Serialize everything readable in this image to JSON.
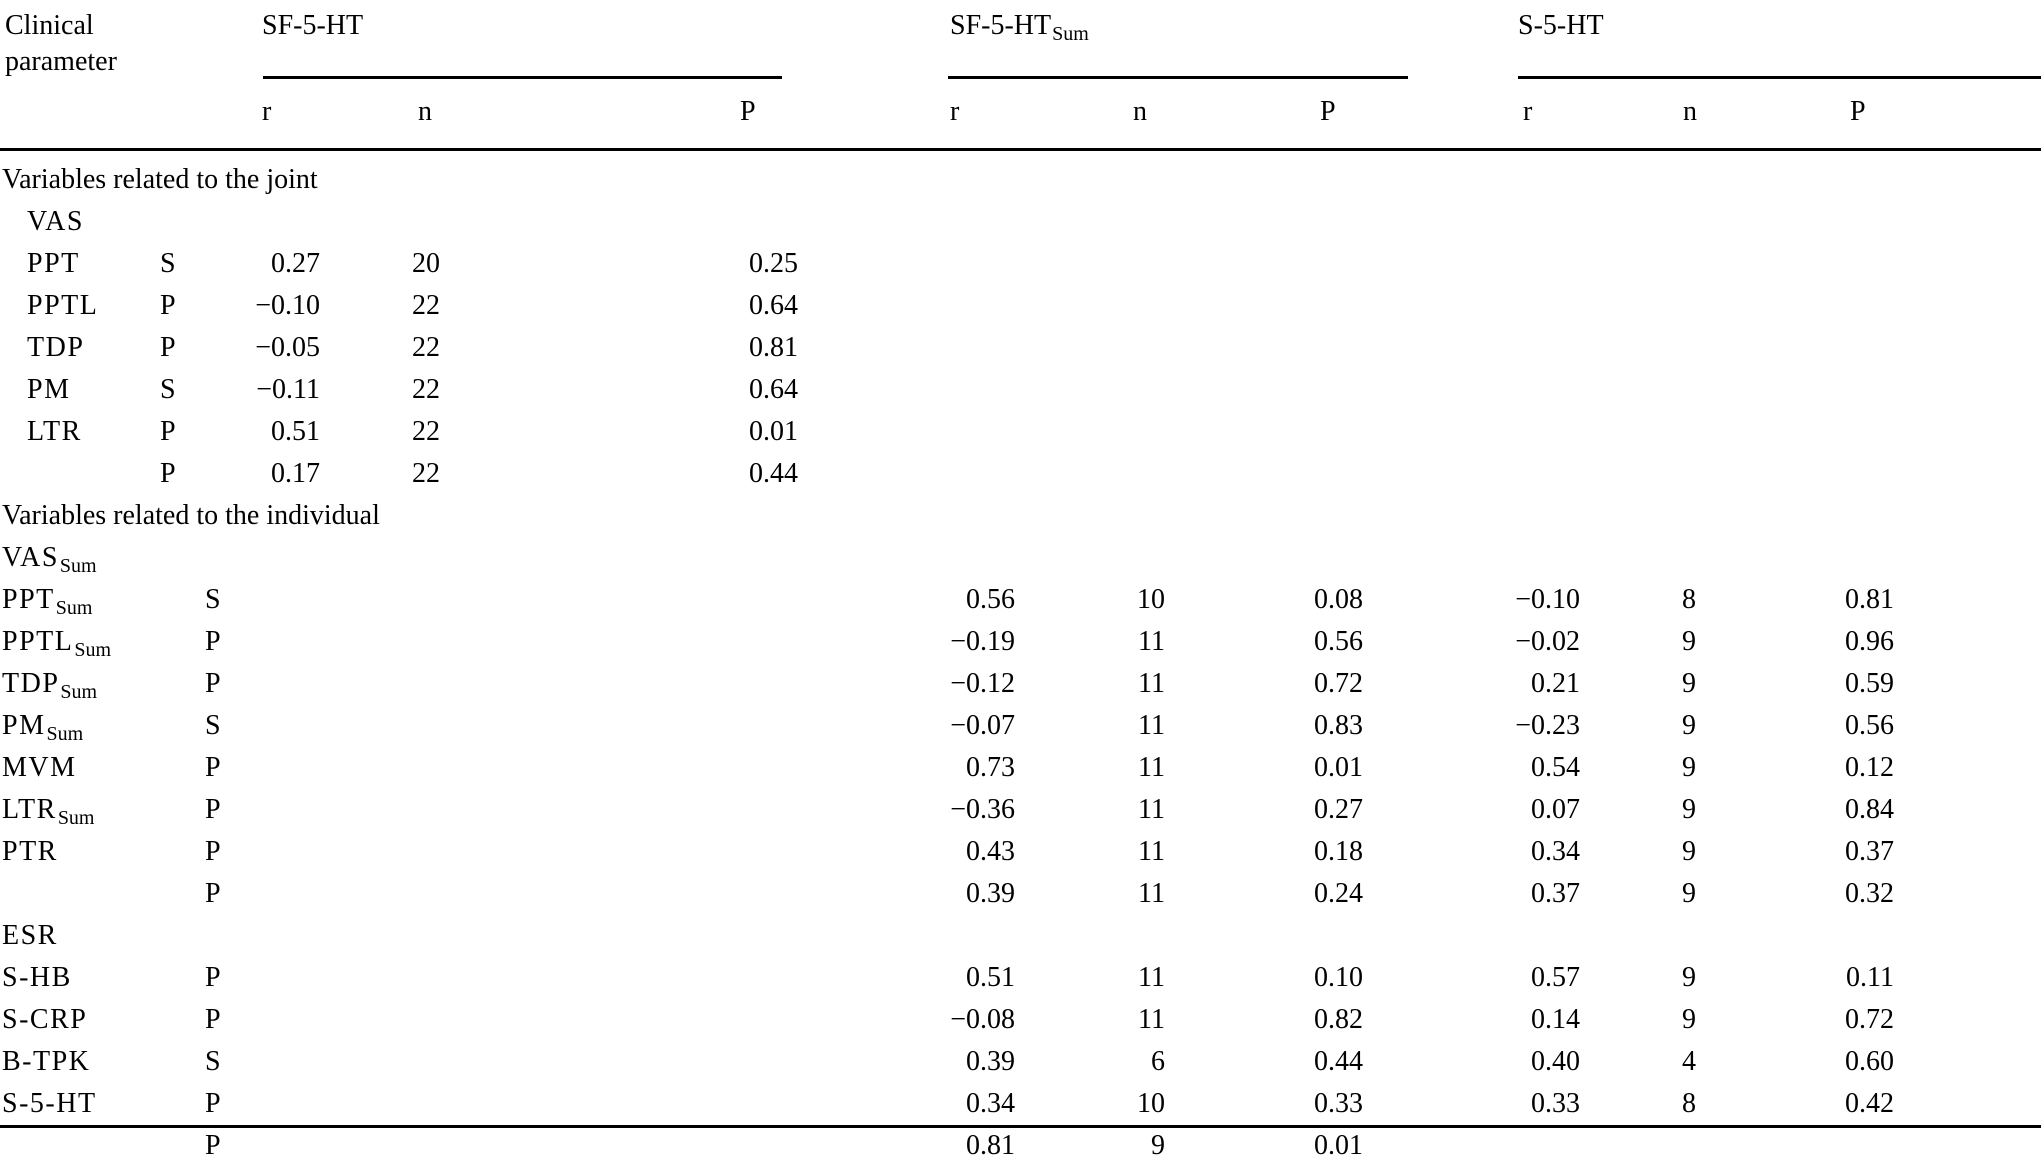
{
  "table": {
    "corner_header": "Clinical parameter",
    "groups": [
      {
        "name": "SF-5-HT",
        "sub": ""
      },
      {
        "name": "SF-5-HT",
        "sub": "Sum"
      },
      {
        "name": "S-5-HT",
        "sub": ""
      }
    ],
    "subheaders": [
      "r",
      "n",
      "P",
      "r",
      "n",
      "P",
      "r",
      "n",
      "P"
    ],
    "sections": [
      {
        "title": "Variables related to the joint",
        "indent": true,
        "gap_before": false,
        "rows": [
          {
            "label": "VAS",
            "sub": "",
            "type": "S",
            "g1": [
              "0.27",
              "20",
              "0.25"
            ],
            "g2": [
              "",
              "",
              ""
            ],
            "g3": [
              "",
              "",
              ""
            ]
          },
          {
            "label": "PPT",
            "sub": "",
            "type": "P",
            "g1": [
              "−0.10",
              "22",
              "0.64"
            ],
            "g2": [
              "",
              "",
              ""
            ],
            "g3": [
              "",
              "",
              ""
            ]
          },
          {
            "label": "PPTL",
            "sub": "",
            "type": "P",
            "g1": [
              "−0.05",
              "22",
              "0.81"
            ],
            "g2": [
              "",
              "",
              ""
            ],
            "g3": [
              "",
              "",
              ""
            ]
          },
          {
            "label": "TDP",
            "sub": "",
            "type": "S",
            "g1": [
              "−0.11",
              "22",
              "0.64"
            ],
            "g2": [
              "",
              "",
              ""
            ],
            "g3": [
              "",
              "",
              ""
            ]
          },
          {
            "label": "PM",
            "sub": "",
            "type": "P",
            "g1": [
              "0.51",
              "22",
              "0.01"
            ],
            "g2": [
              "",
              "",
              ""
            ],
            "g3": [
              "",
              "",
              ""
            ]
          },
          {
            "label": "LTR",
            "sub": "",
            "type": "P",
            "g1": [
              "0.17",
              "22",
              "0.44"
            ],
            "g2": [
              "",
              "",
              ""
            ],
            "g3": [
              "",
              "",
              ""
            ]
          }
        ]
      },
      {
        "title": "Variables related to the individual",
        "indent": false,
        "gap_before": true,
        "rows": [
          {
            "label": "VAS",
            "sub": "Sum",
            "type": "S",
            "g1": [
              "",
              "",
              ""
            ],
            "g2": [
              "0.56",
              "10",
              "0.08"
            ],
            "g3": [
              "−0.10",
              "8",
              "0.81"
            ]
          },
          {
            "label": "PPT",
            "sub": "Sum",
            "type": "P",
            "g1": [
              "",
              "",
              ""
            ],
            "g2": [
              "−0.19",
              "11",
              "0.56"
            ],
            "g3": [
              "−0.02",
              "9",
              "0.96"
            ]
          },
          {
            "label": "PPTL",
            "sub": "Sum",
            "type": "P",
            "g1": [
              "",
              "",
              ""
            ],
            "g2": [
              "−0.12",
              "11",
              "0.72"
            ],
            "g3": [
              "0.21",
              "9",
              "0.59"
            ]
          },
          {
            "label": "TDP",
            "sub": "Sum",
            "type": "S",
            "g1": [
              "",
              "",
              ""
            ],
            "g2": [
              "−0.07",
              "11",
              "0.83"
            ],
            "g3": [
              "−0.23",
              "9",
              "0.56"
            ]
          },
          {
            "label": "PM",
            "sub": "Sum",
            "type": "P",
            "g1": [
              "",
              "",
              ""
            ],
            "g2": [
              "0.73",
              "11",
              "0.01"
            ],
            "g3": [
              "0.54",
              "9",
              "0.12"
            ]
          },
          {
            "label": "MVM",
            "sub": "",
            "type": "P",
            "g1": [
              "",
              "",
              ""
            ],
            "g2": [
              "−0.36",
              "11",
              "0.27"
            ],
            "g3": [
              "0.07",
              "9",
              "0.84"
            ]
          },
          {
            "label": "LTR",
            "sub": "Sum",
            "type": "P",
            "g1": [
              "",
              "",
              ""
            ],
            "g2": [
              "0.43",
              "11",
              "0.18"
            ],
            "g3": [
              "0.34",
              "9",
              "0.37"
            ]
          },
          {
            "label": "PTR",
            "sub": "",
            "type": "P",
            "g1": [
              "",
              "",
              ""
            ],
            "g2": [
              "0.39",
              "11",
              "0.24"
            ],
            "g3": [
              "0.37",
              "9",
              "0.32"
            ]
          }
        ]
      },
      {
        "title": "",
        "indent": false,
        "gap_before": true,
        "rows": [
          {
            "label": "ESR",
            "sub": "",
            "type": "P",
            "g1": [
              "",
              "",
              ""
            ],
            "g2": [
              "0.51",
              "11",
              "0.10"
            ],
            "g3": [
              "0.57",
              "9",
              "0.11"
            ]
          },
          {
            "label": "S-HB",
            "sub": "",
            "type": "P",
            "g1": [
              "",
              "",
              ""
            ],
            "g2": [
              "−0.08",
              "11",
              "0.82"
            ],
            "g3": [
              "0.14",
              "9",
              "0.72"
            ]
          },
          {
            "label": "S-CRP",
            "sub": "",
            "type": "S",
            "g1": [
              "",
              "",
              ""
            ],
            "g2": [
              "0.39",
              "6",
              "0.44"
            ],
            "g3": [
              "0.40",
              "4",
              "0.60"
            ]
          },
          {
            "label": "B-TPK",
            "sub": "",
            "type": "P",
            "g1": [
              "",
              "",
              ""
            ],
            "g2": [
              "0.34",
              "10",
              "0.33"
            ],
            "g3": [
              "0.33",
              "8",
              "0.42"
            ]
          },
          {
            "label": "S-5-HT",
            "sub": "",
            "type": "P",
            "g1": [
              "",
              "",
              ""
            ],
            "g2": [
              "0.81",
              "9",
              "0.01"
            ],
            "g3": [
              "",
              "",
              ""
            ]
          }
        ]
      }
    ]
  }
}
